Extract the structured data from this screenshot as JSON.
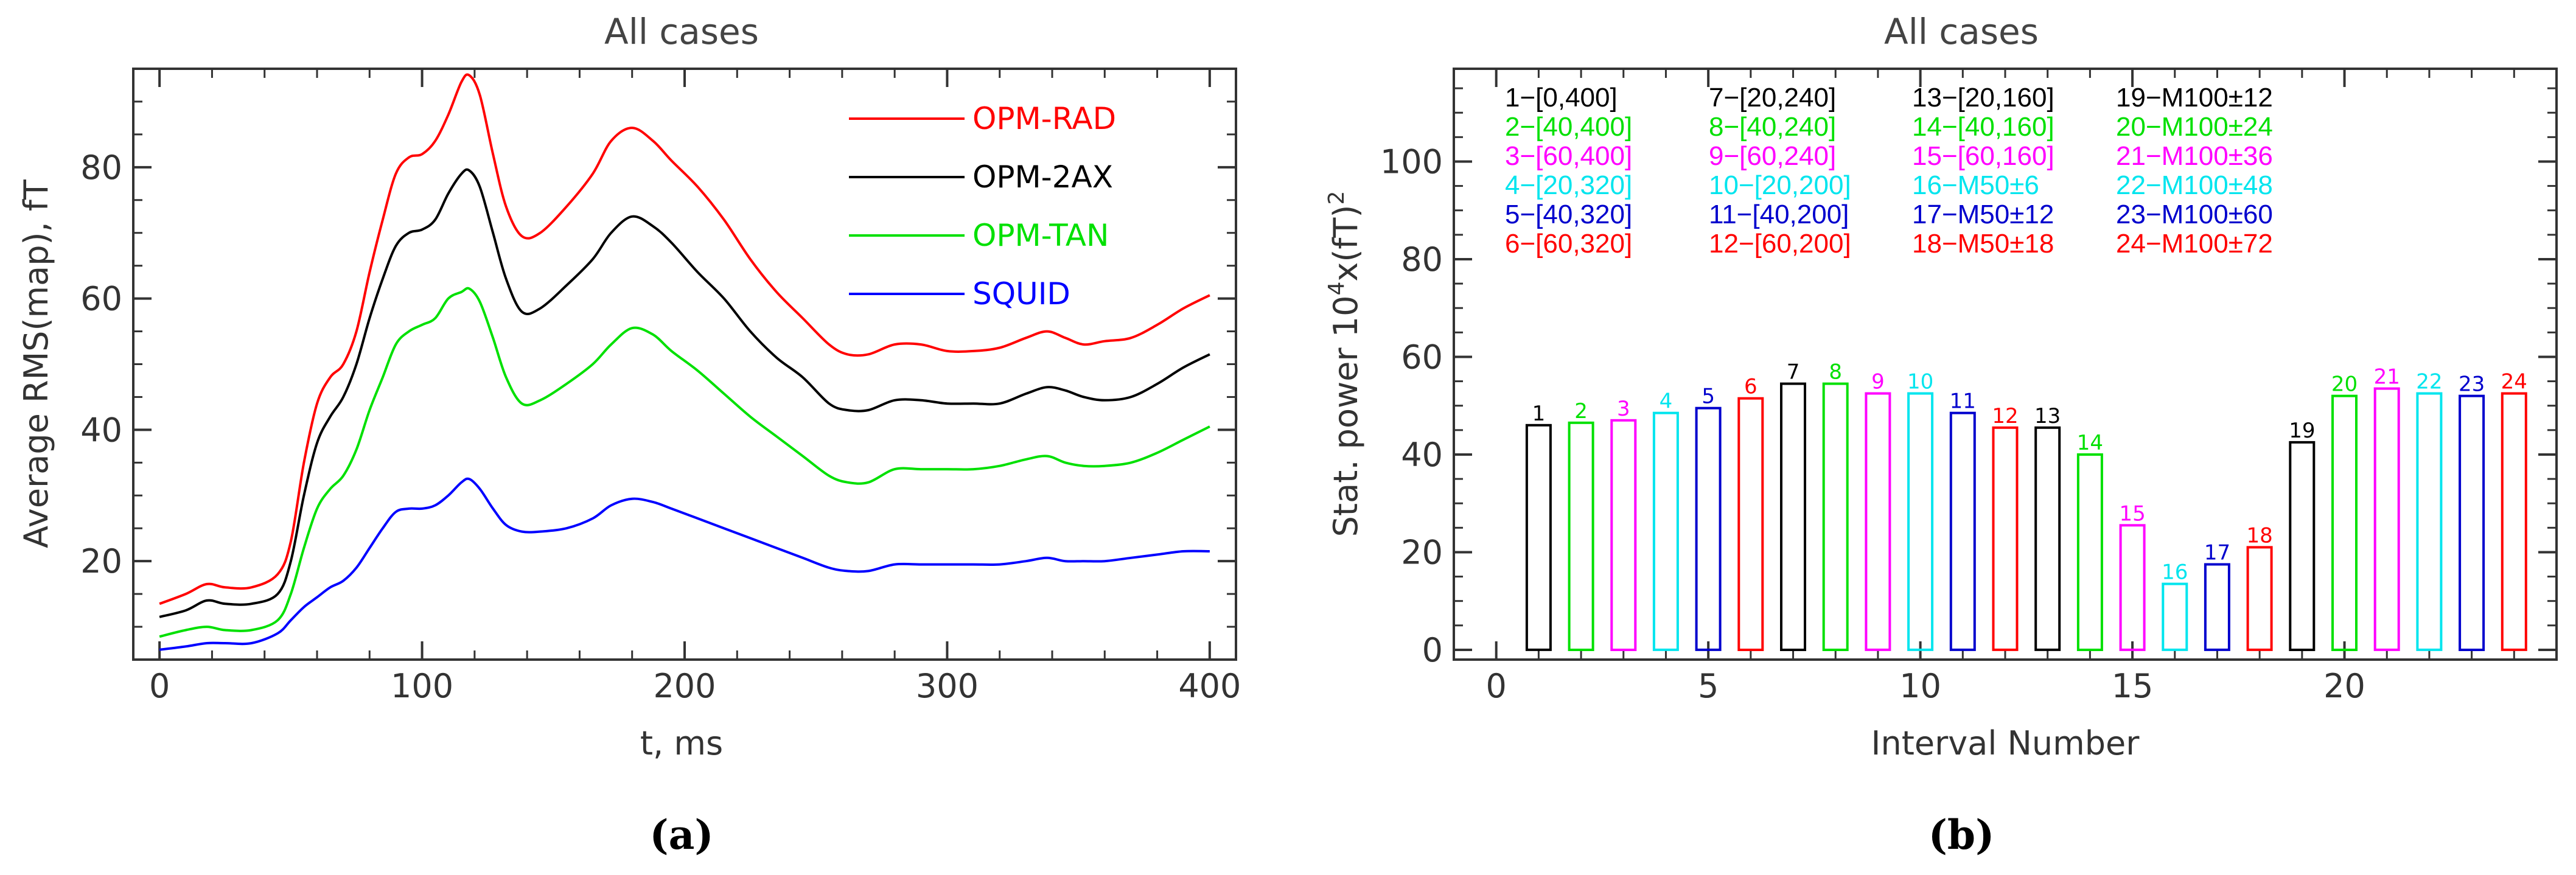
{
  "chart_data": [
    {
      "type": "line",
      "title": "All cases",
      "xlabel": "t, ms",
      "ylabel": "Average RMS(map), fT",
      "xlim": [
        -10,
        410
      ],
      "ylim": [
        5,
        95
      ],
      "xticks": [
        0,
        100,
        200,
        300,
        400
      ],
      "yticks": [
        20,
        40,
        60,
        80
      ],
      "legend_position": "top-right",
      "series": [
        {
          "name": "OPM-RAD",
          "color": "#ff0000",
          "points": [
            [
              0,
              13.5
            ],
            [
              10,
              15
            ],
            [
              18,
              16.5
            ],
            [
              25,
              16
            ],
            [
              35,
              16
            ],
            [
              45,
              18
            ],
            [
              50,
              23
            ],
            [
              55,
              35
            ],
            [
              60,
              44
            ],
            [
              65,
              48
            ],
            [
              70,
              50
            ],
            [
              75,
              55
            ],
            [
              80,
              64
            ],
            [
              85,
              72
            ],
            [
              90,
              79
            ],
            [
              95,
              81.5
            ],
            [
              100,
              82
            ],
            [
              105,
              84
            ],
            [
              110,
              88
            ],
            [
              115,
              93
            ],
            [
              118,
              94
            ],
            [
              122,
              91
            ],
            [
              127,
              82
            ],
            [
              132,
              74
            ],
            [
              138,
              69.5
            ],
            [
              145,
              70
            ],
            [
              155,
              74
            ],
            [
              165,
              79
            ],
            [
              172,
              84
            ],
            [
              180,
              86
            ],
            [
              188,
              84
            ],
            [
              195,
              81
            ],
            [
              205,
              77
            ],
            [
              215,
              72
            ],
            [
              225,
              66
            ],
            [
              235,
              61
            ],
            [
              245,
              57
            ],
            [
              255,
              53
            ],
            [
              262,
              51.5
            ],
            [
              270,
              51.5
            ],
            [
              280,
              53
            ],
            [
              290,
              53
            ],
            [
              300,
              52
            ],
            [
              310,
              52
            ],
            [
              320,
              52.5
            ],
            [
              330,
              54
            ],
            [
              338,
              55
            ],
            [
              345,
              54
            ],
            [
              352,
              53
            ],
            [
              360,
              53.5
            ],
            [
              370,
              54
            ],
            [
              380,
              56
            ],
            [
              390,
              58.5
            ],
            [
              400,
              60.5
            ]
          ]
        },
        {
          "name": "OPM-2AX",
          "color": "#000000",
          "points": [
            [
              0,
              11.5
            ],
            [
              10,
              12.5
            ],
            [
              18,
              14
            ],
            [
              25,
              13.5
            ],
            [
              35,
              13.5
            ],
            [
              45,
              15
            ],
            [
              50,
              20
            ],
            [
              55,
              30
            ],
            [
              60,
              38
            ],
            [
              65,
              42
            ],
            [
              70,
              45
            ],
            [
              75,
              50
            ],
            [
              80,
              57
            ],
            [
              85,
              63
            ],
            [
              90,
              68
            ],
            [
              95,
              70
            ],
            [
              100,
              70.5
            ],
            [
              105,
              72
            ],
            [
              110,
              76
            ],
            [
              115,
              79
            ],
            [
              118,
              79.5
            ],
            [
              122,
              77
            ],
            [
              127,
              70
            ],
            [
              132,
              63
            ],
            [
              138,
              58
            ],
            [
              145,
              58.5
            ],
            [
              155,
              62
            ],
            [
              165,
              66
            ],
            [
              172,
              70
            ],
            [
              180,
              72.5
            ],
            [
              188,
              71
            ],
            [
              195,
              68.5
            ],
            [
              205,
              64
            ],
            [
              215,
              60
            ],
            [
              225,
              55
            ],
            [
              235,
              51
            ],
            [
              245,
              48
            ],
            [
              255,
              44
            ],
            [
              262,
              43
            ],
            [
              270,
              43
            ],
            [
              280,
              44.5
            ],
            [
              290,
              44.5
            ],
            [
              300,
              44
            ],
            [
              310,
              44
            ],
            [
              320,
              44
            ],
            [
              330,
              45.5
            ],
            [
              338,
              46.5
            ],
            [
              345,
              46
            ],
            [
              352,
              45
            ],
            [
              360,
              44.5
            ],
            [
              370,
              45
            ],
            [
              380,
              47
            ],
            [
              390,
              49.5
            ],
            [
              400,
              51.5
            ]
          ]
        },
        {
          "name": "OPM-TAN",
          "color": "#00e000",
          "points": [
            [
              0,
              8.5
            ],
            [
              10,
              9.5
            ],
            [
              18,
              10
            ],
            [
              25,
              9.5
            ],
            [
              35,
              9.5
            ],
            [
              45,
              11
            ],
            [
              50,
              15
            ],
            [
              55,
              22
            ],
            [
              60,
              28
            ],
            [
              65,
              31
            ],
            [
              70,
              33
            ],
            [
              75,
              37
            ],
            [
              80,
              43
            ],
            [
              85,
              48
            ],
            [
              90,
              53
            ],
            [
              95,
              55
            ],
            [
              100,
              56
            ],
            [
              105,
              57
            ],
            [
              110,
              60
            ],
            [
              115,
              61
            ],
            [
              118,
              61.5
            ],
            [
              122,
              59.5
            ],
            [
              127,
              54
            ],
            [
              132,
              48
            ],
            [
              138,
              44
            ],
            [
              145,
              44.5
            ],
            [
              155,
              47
            ],
            [
              165,
              50
            ],
            [
              172,
              53
            ],
            [
              180,
              55.5
            ],
            [
              188,
              54.5
            ],
            [
              195,
              52
            ],
            [
              205,
              49
            ],
            [
              215,
              45.5
            ],
            [
              225,
              42
            ],
            [
              235,
              39
            ],
            [
              245,
              36
            ],
            [
              255,
              33
            ],
            [
              262,
              32
            ],
            [
              270,
              32
            ],
            [
              280,
              34
            ],
            [
              290,
              34
            ],
            [
              300,
              34
            ],
            [
              310,
              34
            ],
            [
              320,
              34.5
            ],
            [
              330,
              35.5
            ],
            [
              338,
              36
            ],
            [
              345,
              35
            ],
            [
              352,
              34.5
            ],
            [
              360,
              34.5
            ],
            [
              370,
              35
            ],
            [
              380,
              36.5
            ],
            [
              390,
              38.5
            ],
            [
              400,
              40.5
            ]
          ]
        },
        {
          "name": "SQUID",
          "color": "#0000ff",
          "points": [
            [
              0,
              6.5
            ],
            [
              10,
              7
            ],
            [
              18,
              7.5
            ],
            [
              25,
              7.5
            ],
            [
              35,
              7.5
            ],
            [
              45,
              9
            ],
            [
              50,
              11
            ],
            [
              55,
              13
            ],
            [
              60,
              14.5
            ],
            [
              65,
              16
            ],
            [
              70,
              17
            ],
            [
              75,
              19
            ],
            [
              80,
              22
            ],
            [
              85,
              25
            ],
            [
              90,
              27.5
            ],
            [
              95,
              28
            ],
            [
              100,
              28
            ],
            [
              105,
              28.5
            ],
            [
              110,
              30
            ],
            [
              115,
              32
            ],
            [
              118,
              32.5
            ],
            [
              122,
              31
            ],
            [
              127,
              28
            ],
            [
              132,
              25.5
            ],
            [
              138,
              24.5
            ],
            [
              145,
              24.5
            ],
            [
              155,
              25
            ],
            [
              165,
              26.5
            ],
            [
              172,
              28.5
            ],
            [
              180,
              29.5
            ],
            [
              188,
              29
            ],
            [
              195,
              28
            ],
            [
              205,
              26.5
            ],
            [
              215,
              25
            ],
            [
              225,
              23.5
            ],
            [
              235,
              22
            ],
            [
              245,
              20.5
            ],
            [
              255,
              19
            ],
            [
              262,
              18.5
            ],
            [
              270,
              18.5
            ],
            [
              280,
              19.5
            ],
            [
              290,
              19.5
            ],
            [
              300,
              19.5
            ],
            [
              310,
              19.5
            ],
            [
              320,
              19.5
            ],
            [
              330,
              20
            ],
            [
              338,
              20.5
            ],
            [
              345,
              20
            ],
            [
              352,
              20
            ],
            [
              360,
              20
            ],
            [
              370,
              20.5
            ],
            [
              380,
              21
            ],
            [
              390,
              21.5
            ],
            [
              400,
              21.5
            ]
          ]
        }
      ]
    },
    {
      "type": "bar",
      "title": "All cases",
      "xlabel": "Interval Number",
      "ylabel": "Stat. power 10",
      "ylabel_sup1": "4",
      "ylabel_mid": "x(fT)",
      "ylabel_sup2": "2",
      "xlim": [
        -1,
        25
      ],
      "ylim": [
        -2,
        119
      ],
      "xticks": [
        0,
        5,
        10,
        15,
        20
      ],
      "yticks": [
        0,
        20,
        40,
        60,
        80,
        100
      ],
      "categories": [
        1,
        2,
        3,
        4,
        5,
        6,
        7,
        8,
        9,
        10,
        11,
        12,
        13,
        14,
        15,
        16,
        17,
        18,
        19,
        20,
        21,
        22,
        23,
        24
      ],
      "values": [
        46,
        46.5,
        47,
        48.5,
        49.5,
        51.5,
        54.5,
        54.5,
        52.5,
        52.5,
        48.5,
        45.5,
        45.5,
        40,
        25.5,
        13.5,
        17.5,
        21,
        42.5,
        52,
        53.5,
        52.5,
        52,
        52.5
      ],
      "bar_colors": [
        "#000000",
        "#00e000",
        "#ff00ff",
        "#00e5ee",
        "#0000cd",
        "#ff0000",
        "#000000",
        "#00e000",
        "#ff00ff",
        "#00e5ee",
        "#0000cd",
        "#ff0000",
        "#000000",
        "#00e000",
        "#ff00ff",
        "#00e5ee",
        "#0000cd",
        "#ff0000",
        "#000000",
        "#00e000",
        "#ff00ff",
        "#00e5ee",
        "#0000cd",
        "#ff0000"
      ],
      "annotations": [
        [
          "1−[0,400]",
          "2−[40,400]",
          "3−[60,400]",
          "4−[20,320]",
          "5−[40,320]",
          "6−[60,320]"
        ],
        [
          "7−[20,240]",
          "8−[40,240]",
          "9−[60,240]",
          "10−[20,200]",
          "11−[40,200]",
          "12−[60,200]"
        ],
        [
          "13−[20,160]",
          "14−[40,160]",
          "15−[60,160]",
          "16−M50±6",
          "17−M50±12",
          "18−M50±18"
        ],
        [
          "19−M100±12",
          "20−M100±24",
          "21−M100±36",
          "22−M100±48",
          "23−M100±60",
          "24−M100±72"
        ]
      ],
      "annotation_colors": [
        "#000000",
        "#00e000",
        "#ff00ff",
        "#00e5ee",
        "#0000cd",
        "#ff0000"
      ]
    }
  ],
  "panel_labels": [
    "(a)",
    "(b)"
  ]
}
